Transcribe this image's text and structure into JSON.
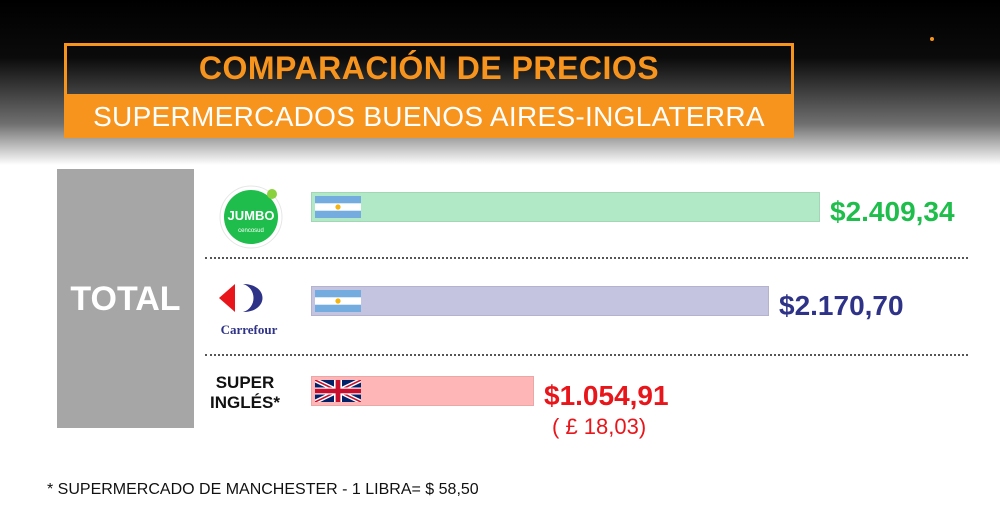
{
  "header": {
    "title": "COMPARACIÓN DE PRECIOS",
    "subtitle": "SUPERMERCADOS BUENOS AIRES-INGLATERRA"
  },
  "colors": {
    "accent": "#f7941d",
    "jumbo": "#1fbe4c",
    "carrefour": "#2e3387",
    "ingles": "#e8161b"
  },
  "chart_data": {
    "type": "bar",
    "orientation": "horizontal",
    "group_label": "TOTAL",
    "categories": [
      "JUMBO",
      "Carrefour",
      "SUPER INGLÉS*"
    ],
    "values": [
      2409.34,
      2170.7,
      1054.91
    ],
    "value_labels": [
      "$2.409,34",
      "$2.170,70",
      "$1.054,91"
    ],
    "secondary_labels": [
      "",
      "",
      "( £ 18,03)"
    ],
    "bar_colors": [
      "#b1e9c6",
      "#c4c3e0",
      "#ffb6b6"
    ],
    "label_colors": [
      "#1fbe4c",
      "#2e3387",
      "#e8161b"
    ],
    "flags": [
      "argentina-flag",
      "argentina-flag",
      "uk-flag"
    ]
  },
  "logos": {
    "jumbo_text": "JUMBO",
    "jumbo_subtext": "cencosud",
    "carrefour_text": "Carrefour",
    "ingles_line1": "SUPER",
    "ingles_line2": "INGLÉS*"
  },
  "footnote": "* SUPERMERCADO DE MANCHESTER  -  1 LIBRA= $ 58,50"
}
